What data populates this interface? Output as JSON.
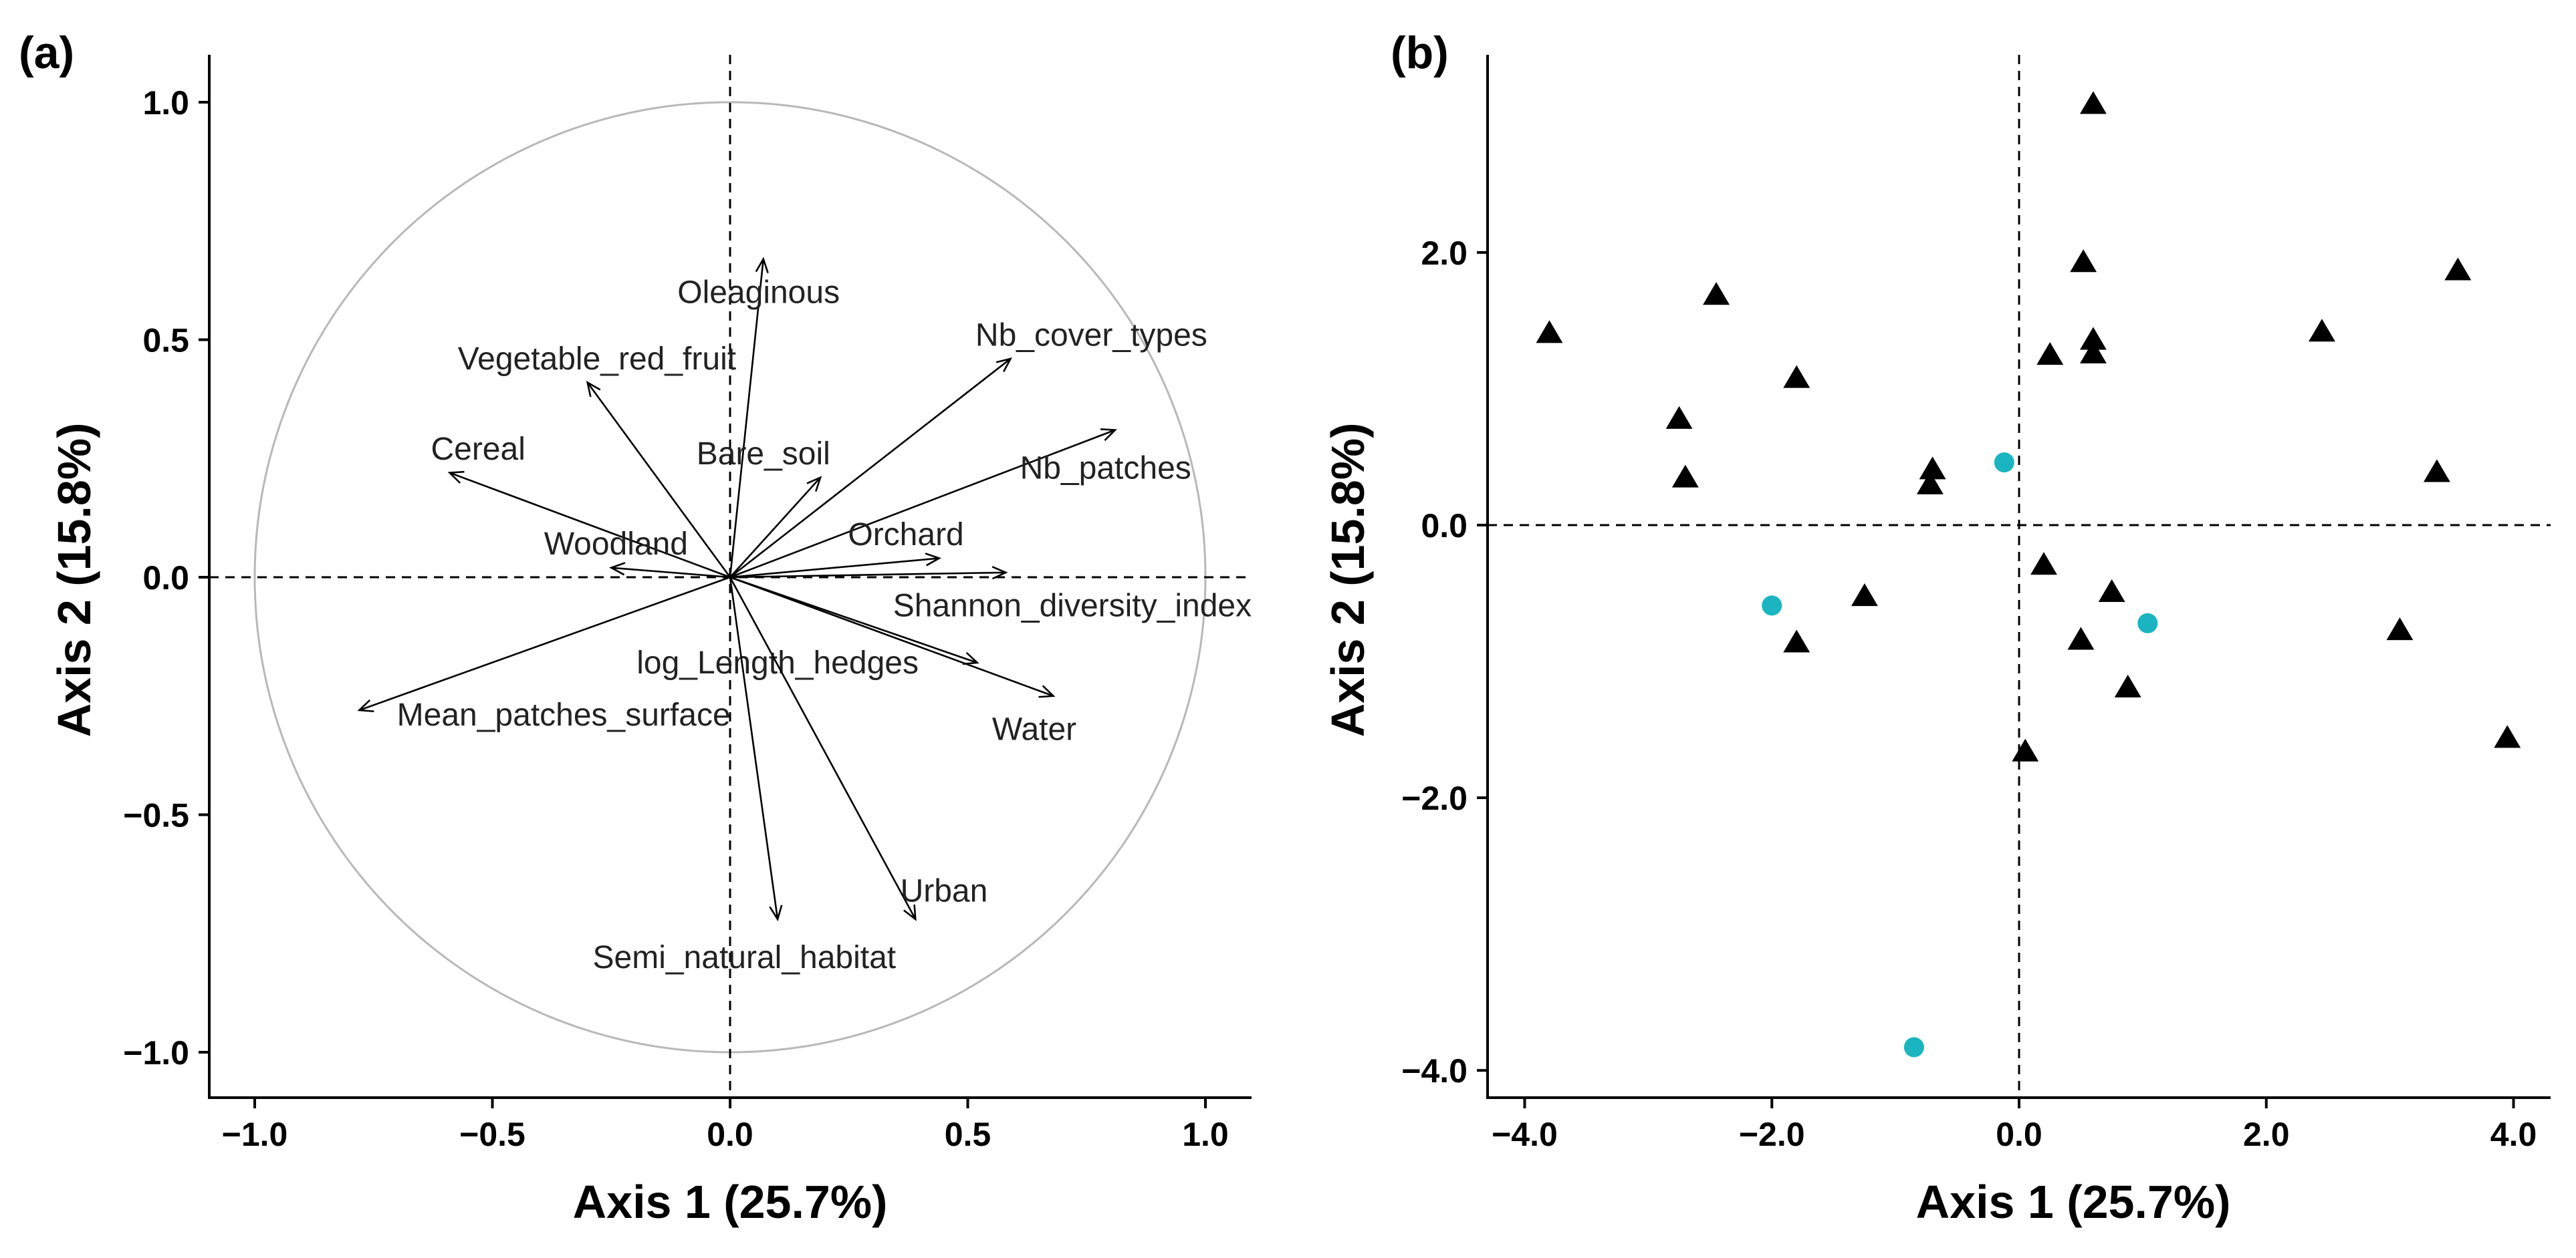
{
  "chart_data": [
    {
      "type": "correlation-circle",
      "panel_label": "(a)",
      "xlabel": "Axis 1 (25.7%)",
      "ylabel": "Axis 2 (15.8%)",
      "xlim": [
        -1.1,
        1.1
      ],
      "ylim": [
        -1.1,
        1.1
      ],
      "xticks": [
        -1.0,
        -0.5,
        0.0,
        0.5,
        1.0
      ],
      "yticks": [
        -1.0,
        -0.5,
        0.0,
        0.5,
        1.0
      ],
      "xtick_labels": [
        "−1.0",
        "−0.5",
        "0.0",
        "0.5",
        "1.0"
      ],
      "ytick_labels": [
        "−1.0",
        "−0.5",
        "0.0",
        "0.5",
        "1.0"
      ],
      "circle_radius": 1.0,
      "zero_lines": true,
      "vectors": [
        {
          "name": "Oleaginous",
          "x": 0.07,
          "y": 0.67,
          "lx": 0.06,
          "ly": 0.6
        },
        {
          "name": "Vegetable_red_fruit",
          "x": -0.3,
          "y": 0.41,
          "lx": -0.28,
          "ly": 0.46
        },
        {
          "name": "Nb_cover_types",
          "x": 0.59,
          "y": 0.46,
          "lx": 0.76,
          "ly": 0.51
        },
        {
          "name": "Cereal",
          "x": -0.59,
          "y": 0.22,
          "lx": -0.53,
          "ly": 0.27
        },
        {
          "name": "Bare_soil",
          "x": 0.19,
          "y": 0.21,
          "lx": 0.07,
          "ly": 0.26
        },
        {
          "name": "Nb_patches",
          "x": 0.81,
          "y": 0.31,
          "lx": 0.79,
          "ly": 0.23
        },
        {
          "name": "Orchard",
          "x": 0.44,
          "y": 0.04,
          "lx": 0.37,
          "ly": 0.09
        },
        {
          "name": "Woodland",
          "x": -0.25,
          "y": 0.02,
          "lx": -0.24,
          "ly": 0.07
        },
        {
          "name": "Shannon_diversity_index",
          "x": 0.58,
          "y": 0.01,
          "lx": 0.72,
          "ly": -0.06
        },
        {
          "name": "log_Length_hedges",
          "x": 0.52,
          "y": -0.18,
          "lx": 0.1,
          "ly": -0.18
        },
        {
          "name": "Water",
          "x": 0.68,
          "y": -0.25,
          "lx": 0.64,
          "ly": -0.32
        },
        {
          "name": "Mean_patches_surface",
          "x": -0.78,
          "y": -0.28,
          "lx": -0.35,
          "ly": -0.29
        },
        {
          "name": "Urban",
          "x": 0.39,
          "y": -0.72,
          "lx": 0.45,
          "ly": -0.66
        },
        {
          "name": "Semi_natural_habitat",
          "x": 0.1,
          "y": -0.72,
          "lx": 0.03,
          "ly": -0.8
        }
      ]
    },
    {
      "type": "scatter",
      "panel_label": "(b)",
      "xlabel": "Axis 1 (25.7%)",
      "ylabel": "Axis 2 (15.8%)",
      "xlim": [
        -4.3,
        4.3
      ],
      "ylim": [
        -4.2,
        3.45
      ],
      "xticks": [
        -4.0,
        -2.0,
        0.0,
        2.0,
        4.0
      ],
      "yticks": [
        -4.0,
        -2.0,
        0.0,
        2.0
      ],
      "xtick_labels": [
        "−4.0",
        "−2.0",
        "0.0",
        "2.0",
        "4.0"
      ],
      "ytick_labels": [
        "−4.0",
        "−2.0",
        "0.0",
        "2.0"
      ],
      "zero_lines": true,
      "series": [
        {
          "name": "triangles",
          "marker": "triangle",
          "color": "#000000",
          "points": [
            [
              -3.8,
              1.4
            ],
            [
              -2.45,
              1.68
            ],
            [
              -1.8,
              1.07
            ],
            [
              -2.75,
              0.77
            ],
            [
              -2.7,
              0.34
            ],
            [
              -0.7,
              0.4
            ],
            [
              -0.72,
              0.29
            ],
            [
              -1.25,
              -0.53
            ],
            [
              -1.8,
              -0.87
            ],
            [
              0.6,
              3.08
            ],
            [
              0.52,
              1.92
            ],
            [
              0.25,
              1.24
            ],
            [
              0.6,
              1.35
            ],
            [
              0.6,
              1.25
            ],
            [
              0.2,
              -0.3
            ],
            [
              0.75,
              -0.5
            ],
            [
              0.5,
              -0.85
            ],
            [
              0.88,
              -1.2
            ],
            [
              0.05,
              -1.67
            ],
            [
              2.45,
              1.41
            ],
            [
              3.55,
              1.86
            ],
            [
              3.38,
              0.38
            ],
            [
              3.08,
              -0.78
            ],
            [
              3.95,
              -1.57
            ]
          ]
        },
        {
          "name": "circles",
          "marker": "circle",
          "color": "#1ab5c0",
          "points": [
            [
              -0.12,
              0.46
            ],
            [
              -2.0,
              -0.59
            ],
            [
              1.04,
              -0.72
            ],
            [
              -0.85,
              -3.83
            ]
          ]
        }
      ]
    }
  ]
}
